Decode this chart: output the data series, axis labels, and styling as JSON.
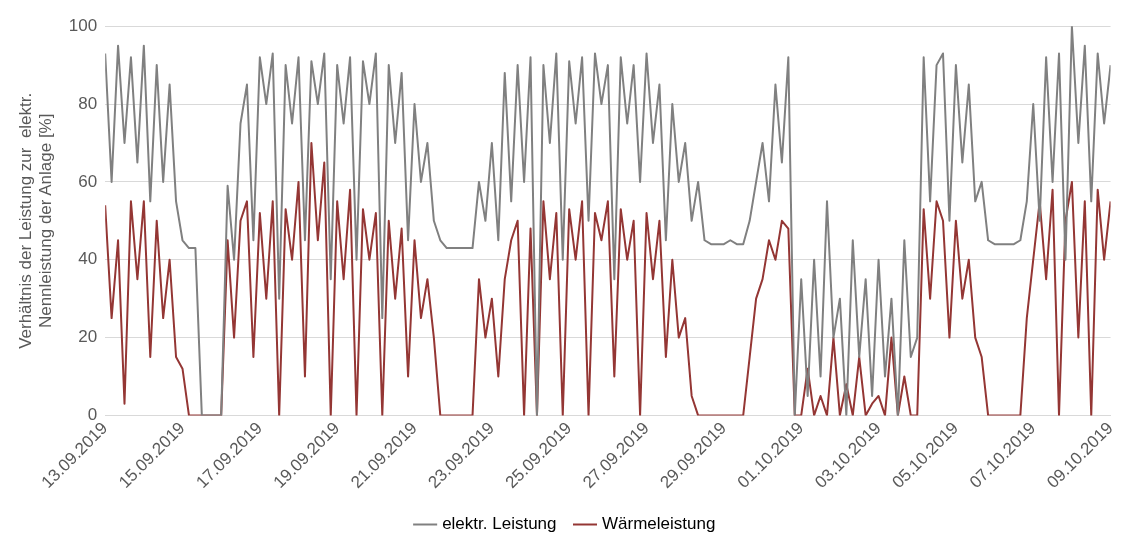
{
  "chart_data": {
    "type": "line",
    "ylabel": "Verhältnis der Leistung zur  elektr.\nNennleistung der Anlage [%]",
    "x": [
      "2019-09-13T00:00",
      "2019-09-13T04:00",
      "2019-09-13T08:00",
      "2019-09-13T12:00",
      "2019-09-13T16:00",
      "2019-09-13T20:00",
      "2019-09-14T00:00",
      "2019-09-14T04:00",
      "2019-09-14T08:00",
      "2019-09-14T12:00",
      "2019-09-14T16:00",
      "2019-09-14T20:00",
      "2019-09-15T00:00",
      "2019-09-15T04:00",
      "2019-09-15T08:00",
      "2019-09-15T12:00",
      "2019-09-15T16:00",
      "2019-09-15T20:00",
      "2019-09-16T00:00",
      "2019-09-16T04:00",
      "2019-09-16T08:00",
      "2019-09-16T12:00",
      "2019-09-16T16:00",
      "2019-09-16T20:00",
      "2019-09-17T00:00",
      "2019-09-17T04:00",
      "2019-09-17T08:00",
      "2019-09-17T12:00",
      "2019-09-17T16:00",
      "2019-09-17T20:00",
      "2019-09-18T00:00",
      "2019-09-18T04:00",
      "2019-09-18T08:00",
      "2019-09-18T12:00",
      "2019-09-18T16:00",
      "2019-09-18T20:00",
      "2019-09-19T00:00",
      "2019-09-19T04:00",
      "2019-09-19T08:00",
      "2019-09-19T12:00",
      "2019-09-19T16:00",
      "2019-09-19T20:00",
      "2019-09-20T00:00",
      "2019-09-20T04:00",
      "2019-09-20T08:00",
      "2019-09-20T12:00",
      "2019-09-20T16:00",
      "2019-09-20T20:00",
      "2019-09-21T00:00",
      "2019-09-21T04:00",
      "2019-09-21T08:00",
      "2019-09-21T12:00",
      "2019-09-21T16:00",
      "2019-09-21T20:00",
      "2019-09-22T00:00",
      "2019-09-22T04:00",
      "2019-09-22T08:00",
      "2019-09-22T12:00",
      "2019-09-22T16:00",
      "2019-09-22T20:00",
      "2019-09-23T00:00",
      "2019-09-23T04:00",
      "2019-09-23T08:00",
      "2019-09-23T12:00",
      "2019-09-23T16:00",
      "2019-09-23T20:00",
      "2019-09-24T00:00",
      "2019-09-24T04:00",
      "2019-09-24T08:00",
      "2019-09-24T12:00",
      "2019-09-24T16:00",
      "2019-09-24T20:00",
      "2019-09-25T00:00",
      "2019-09-25T04:00",
      "2019-09-25T08:00",
      "2019-09-25T12:00",
      "2019-09-25T16:00",
      "2019-09-25T20:00",
      "2019-09-26T00:00",
      "2019-09-26T04:00",
      "2019-09-26T08:00",
      "2019-09-26T12:00",
      "2019-09-26T16:00",
      "2019-09-26T20:00",
      "2019-09-27T00:00",
      "2019-09-27T04:00",
      "2019-09-27T08:00",
      "2019-09-27T12:00",
      "2019-09-27T16:00",
      "2019-09-27T20:00",
      "2019-09-28T00:00",
      "2019-09-28T04:00",
      "2019-09-28T08:00",
      "2019-09-28T12:00",
      "2019-09-28T16:00",
      "2019-09-28T20:00",
      "2019-09-29T00:00",
      "2019-09-29T04:00",
      "2019-09-29T08:00",
      "2019-09-29T12:00",
      "2019-09-29T16:00",
      "2019-09-29T20:00",
      "2019-09-30T00:00",
      "2019-09-30T04:00",
      "2019-09-30T08:00",
      "2019-09-30T12:00",
      "2019-09-30T16:00",
      "2019-09-30T20:00",
      "2019-10-01T00:00",
      "2019-10-01T04:00",
      "2019-10-01T08:00",
      "2019-10-01T12:00",
      "2019-10-01T16:00",
      "2019-10-01T20:00",
      "2019-10-02T00:00",
      "2019-10-02T04:00",
      "2019-10-02T08:00",
      "2019-10-02T12:00",
      "2019-10-02T16:00",
      "2019-10-02T20:00",
      "2019-10-03T00:00",
      "2019-10-03T04:00",
      "2019-10-03T08:00",
      "2019-10-03T12:00",
      "2019-10-03T16:00",
      "2019-10-03T20:00",
      "2019-10-04T00:00",
      "2019-10-04T04:00",
      "2019-10-04T08:00",
      "2019-10-04T12:00",
      "2019-10-04T16:00",
      "2019-10-04T20:00",
      "2019-10-05T00:00",
      "2019-10-05T04:00",
      "2019-10-05T08:00",
      "2019-10-05T12:00",
      "2019-10-05T16:00",
      "2019-10-05T20:00",
      "2019-10-06T00:00",
      "2019-10-06T04:00",
      "2019-10-06T08:00",
      "2019-10-06T12:00",
      "2019-10-06T16:00",
      "2019-10-06T20:00",
      "2019-10-07T00:00",
      "2019-10-07T04:00",
      "2019-10-07T08:00",
      "2019-10-07T12:00",
      "2019-10-07T16:00",
      "2019-10-07T20:00",
      "2019-10-08T00:00",
      "2019-10-08T04:00",
      "2019-10-08T08:00",
      "2019-10-08T12:00",
      "2019-10-08T16:00",
      "2019-10-08T20:00",
      "2019-10-09T00:00"
    ],
    "series": [
      {
        "name": "elektr. Leistung",
        "color": "#808080",
        "values": [
          93,
          60,
          95,
          70,
          92,
          65,
          95,
          55,
          90,
          60,
          85,
          55,
          45,
          43,
          43,
          0,
          0,
          0,
          0,
          59,
          40,
          75,
          85,
          45,
          92,
          80,
          93,
          30,
          90,
          75,
          92,
          45,
          91,
          80,
          93,
          35,
          90,
          75,
          92,
          40,
          91,
          80,
          93,
          25,
          90,
          70,
          88,
          45,
          80,
          60,
          70,
          50,
          45,
          43,
          43,
          43,
          43,
          43,
          60,
          50,
          70,
          45,
          88,
          55,
          90,
          60,
          92,
          0,
          90,
          70,
          93,
          40,
          91,
          75,
          92,
          50,
          93,
          80,
          90,
          35,
          92,
          75,
          90,
          60,
          93,
          70,
          85,
          45,
          80,
          60,
          70,
          50,
          60,
          45,
          44,
          44,
          44,
          45,
          44,
          44,
          50,
          60,
          70,
          55,
          85,
          65,
          92,
          0,
          35,
          5,
          40,
          10,
          55,
          20,
          30,
          0,
          45,
          15,
          35,
          5,
          40,
          10,
          30,
          0,
          45,
          15,
          20,
          92,
          55,
          90,
          93,
          50,
          90,
          65,
          85,
          55,
          60,
          45,
          44,
          44,
          44,
          44,
          45,
          55,
          80,
          50,
          92,
          60,
          93,
          40,
          100,
          70,
          95,
          55,
          93,
          75,
          90
        ]
      },
      {
        "name": "Wärmeleistung",
        "color": "#943634",
        "values": [
          54,
          25,
          45,
          3,
          55,
          35,
          55,
          15,
          50,
          25,
          40,
          15,
          12,
          0,
          0,
          0,
          0,
          0,
          0,
          45,
          20,
          50,
          55,
          15,
          52,
          30,
          55,
          0,
          53,
          40,
          60,
          10,
          70,
          45,
          65,
          0,
          55,
          35,
          58,
          0,
          53,
          40,
          52,
          0,
          50,
          30,
          48,
          10,
          45,
          25,
          35,
          20,
          0,
          0,
          0,
          0,
          0,
          0,
          35,
          20,
          30,
          10,
          35,
          45,
          50,
          0,
          48,
          0,
          55,
          35,
          52,
          0,
          53,
          40,
          55,
          0,
          52,
          45,
          55,
          10,
          53,
          40,
          50,
          0,
          52,
          35,
          50,
          15,
          40,
          20,
          25,
          5,
          0,
          0,
          0,
          0,
          0,
          0,
          0,
          0,
          15,
          30,
          35,
          45,
          40,
          50,
          48,
          0,
          0,
          12,
          0,
          5,
          0,
          20,
          0,
          8,
          0,
          15,
          0,
          3,
          5,
          0,
          20,
          0,
          10,
          0,
          0,
          53,
          30,
          55,
          50,
          20,
          50,
          30,
          40,
          20,
          15,
          0,
          0,
          0,
          0,
          0,
          0,
          25,
          40,
          55,
          35,
          58,
          0,
          50,
          60,
          20,
          55,
          0,
          58,
          40,
          55
        ]
      }
    ],
    "xlim": [
      "2019-09-13",
      "2019-10-09"
    ],
    "xticks": [
      {
        "value": "2019-09-13",
        "label": "13.09.2019"
      },
      {
        "value": "2019-09-15",
        "label": "15.09.2019"
      },
      {
        "value": "2019-09-17",
        "label": "17.09.2019"
      },
      {
        "value": "2019-09-19",
        "label": "19.09.2019"
      },
      {
        "value": "2019-09-21",
        "label": "21.09.2019"
      },
      {
        "value": "2019-09-23",
        "label": "23.09.2019"
      },
      {
        "value": "2019-09-25",
        "label": "25.09.2019"
      },
      {
        "value": "2019-09-27",
        "label": "27.09.2019"
      },
      {
        "value": "2019-09-29",
        "label": "29.09.2019"
      },
      {
        "value": "2019-10-01",
        "label": "01.10.2019"
      },
      {
        "value": "2019-10-03",
        "label": "03.10.2019"
      },
      {
        "value": "2019-10-05",
        "label": "05.10.2019"
      },
      {
        "value": "2019-10-07",
        "label": "07.10.2019"
      },
      {
        "value": "2019-10-09",
        "label": "09.10.2019"
      }
    ],
    "ylim": [
      0,
      100
    ],
    "yticks": [
      0,
      20,
      40,
      60,
      80,
      100
    ],
    "grid": "y",
    "legend": "bottom",
    "marker": "none",
    "line_style": "solid"
  }
}
